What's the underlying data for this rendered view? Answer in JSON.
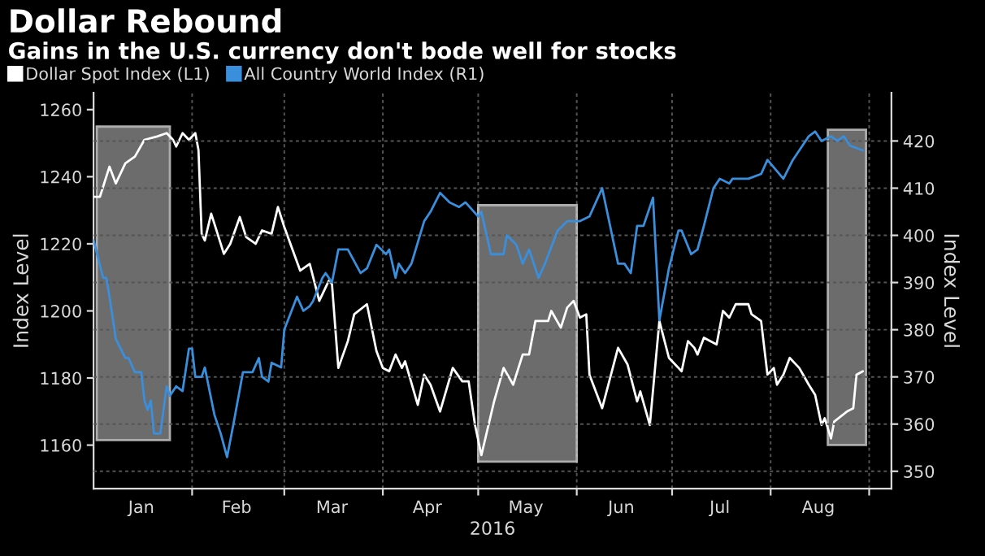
{
  "chart_data": {
    "type": "line",
    "title": "Dollar Rebound",
    "subtitle": "Gains in the U.S. currency don't bode well for stocks",
    "xlabel": "2016",
    "ylabel": "Index Level",
    "y2label": "Index Level",
    "series": [
      {
        "name": "Dollar Spot Index (L1)",
        "color": "#ffffff",
        "x": [
          "2016-01-01",
          "2016-01-03",
          "2016-01-06",
          "2016-01-08",
          "2016-01-11",
          "2016-01-14",
          "2016-01-17",
          "2016-01-21",
          "2016-01-24",
          "2016-01-26",
          "2016-01-27",
          "2016-01-29",
          "2016-01-31",
          "2016-02-02",
          "2016-02-03",
          "2016-02-04",
          "2016-02-05",
          "2016-02-07",
          "2016-02-08",
          "2016-02-11",
          "2016-02-13",
          "2016-02-16",
          "2016-02-18",
          "2016-02-21",
          "2016-02-23",
          "2016-02-26",
          "2016-02-28",
          "2016-03-01",
          "2016-03-06",
          "2016-03-09",
          "2016-03-12",
          "2016-03-15",
          "2016-03-16",
          "2016-03-18",
          "2016-03-21",
          "2016-03-23",
          "2016-03-27",
          "2016-03-30",
          "2016-04-01",
          "2016-04-03",
          "2016-04-05",
          "2016-04-07",
          "2016-04-08",
          "2016-04-12",
          "2016-04-14",
          "2016-04-16",
          "2016-04-19",
          "2016-04-23",
          "2016-04-26",
          "2016-04-28",
          "2016-04-30",
          "2016-05-02",
          "2016-05-06",
          "2016-05-09",
          "2016-05-12",
          "2016-05-15",
          "2016-05-17",
          "2016-05-19",
          "2016-05-23",
          "2016-05-24",
          "2016-05-27",
          "2016-05-29",
          "2016-05-31",
          "2016-06-02",
          "2016-06-04",
          "2016-06-05",
          "2016-06-09",
          "2016-06-14",
          "2016-06-17",
          "2016-06-20",
          "2016-06-21",
          "2016-06-24",
          "2016-06-27",
          "2016-06-30",
          "2016-07-04",
          "2016-07-06",
          "2016-07-08",
          "2016-07-09",
          "2016-07-11",
          "2016-07-15",
          "2016-07-17",
          "2016-07-19",
          "2016-07-21",
          "2016-07-25",
          "2016-07-26",
          "2016-07-29",
          "2016-07-31",
          "2016-08-02",
          "2016-08-03",
          "2016-08-05",
          "2016-08-07",
          "2016-08-10",
          "2016-08-13",
          "2016-08-15",
          "2016-08-17",
          "2016-08-18",
          "2016-08-20",
          "2016-08-21",
          "2016-08-25",
          "2016-08-27",
          "2016-08-28",
          "2016-08-30"
        ],
        "values": [
          1234,
          1234,
          1243,
          1238,
          1244,
          1246,
          1251,
          1252,
          1253,
          1251,
          1249,
          1253,
          1251,
          1253,
          1248,
          1223,
          1221,
          1229,
          1226,
          1217,
          1220,
          1228,
          1222,
          1220,
          1224,
          1223,
          1231,
          1225,
          1212,
          1214,
          1203,
          1209,
          1208,
          1183,
          1191,
          1199,
          1202,
          1188,
          1183,
          1182,
          1187,
          1183,
          1185,
          1172,
          1181,
          1178,
          1170,
          1183,
          1179,
          1179,
          1166,
          1157,
          1173,
          1183,
          1178,
          1187,
          1187,
          1197,
          1197,
          1200,
          1195,
          1201,
          1203,
          1198,
          1199,
          1181,
          1171,
          1189,
          1184,
          1173,
          1176,
          1166,
          1197,
          1186,
          1182,
          1191,
          1189,
          1187,
          1192,
          1190,
          1200,
          1198,
          1202,
          1202,
          1199,
          1197,
          1181,
          1183,
          1178,
          1181,
          1186,
          1183,
          1178,
          1175,
          1166,
          1168,
          1162,
          1167,
          1170,
          1171,
          1181,
          1182
        ]
      },
      {
        "name": "All Country World Index (R1)",
        "color": "#3a8fdd",
        "axis": "y2",
        "x": [
          "2016-01-01",
          "2016-01-04",
          "2016-01-05",
          "2016-01-06",
          "2016-01-08",
          "2016-01-11",
          "2016-01-12",
          "2016-01-14",
          "2016-01-16",
          "2016-01-17",
          "2016-01-18",
          "2016-01-19",
          "2016-01-20",
          "2016-01-22",
          "2016-01-24",
          "2016-01-25",
          "2016-01-27",
          "2016-01-29",
          "2016-01-31",
          "2016-02-01",
          "2016-02-02",
          "2016-02-04",
          "2016-02-05",
          "2016-02-08",
          "2016-02-10",
          "2016-02-12",
          "2016-02-14",
          "2016-02-17",
          "2016-02-20",
          "2016-02-22",
          "2016-02-23",
          "2016-02-25",
          "2016-02-26",
          "2016-02-29",
          "2016-03-01",
          "2016-03-05",
          "2016-03-07",
          "2016-03-09",
          "2016-03-10",
          "2016-03-13",
          "2016-03-14",
          "2016-03-16",
          "2016-03-18",
          "2016-03-21",
          "2016-03-25",
          "2016-03-27",
          "2016-03-30",
          "2016-04-02",
          "2016-04-03",
          "2016-04-05",
          "2016-04-06",
          "2016-04-08",
          "2016-04-10",
          "2016-04-14",
          "2016-04-16",
          "2016-04-19",
          "2016-04-22",
          "2016-04-25",
          "2016-04-27",
          "2016-05-01",
          "2016-05-02",
          "2016-05-05",
          "2016-05-09",
          "2016-05-10",
          "2016-05-13",
          "2016-05-15",
          "2016-05-17",
          "2016-05-20",
          "2016-05-22",
          "2016-05-26",
          "2016-05-29",
          "2016-06-02",
          "2016-06-05",
          "2016-06-09",
          "2016-06-14",
          "2016-06-16",
          "2016-06-18",
          "2016-06-20",
          "2016-06-22",
          "2016-06-25",
          "2016-06-26",
          "2016-06-27",
          "2016-06-30",
          "2016-07-03",
          "2016-07-04",
          "2016-07-07",
          "2016-07-09",
          "2016-07-11",
          "2016-07-14",
          "2016-07-16",
          "2016-07-19",
          "2016-07-20",
          "2016-07-25",
          "2016-07-29",
          "2016-07-31",
          "2016-08-05",
          "2016-08-08",
          "2016-08-11",
          "2016-08-13",
          "2016-08-15",
          "2016-08-17",
          "2016-08-20",
          "2016-08-22",
          "2016-08-24",
          "2016-08-26",
          "2016-08-30"
        ],
        "values": [
          399,
          391,
          391,
          387,
          378,
          374,
          374,
          371,
          371,
          365,
          363,
          365,
          358,
          358,
          368,
          366,
          368,
          367,
          376,
          376,
          370,
          370,
          372,
          362,
          358,
          353,
          360,
          371,
          371,
          374,
          370,
          369,
          373,
          372,
          380,
          387,
          384,
          385,
          386,
          391,
          392,
          390,
          397,
          397,
          392,
          393,
          398,
          396,
          397,
          391,
          394,
          392,
          394,
          403,
          405,
          409,
          407,
          406,
          407,
          404,
          405,
          396,
          396,
          400,
          398,
          394,
          397,
          391,
          394,
          401,
          403,
          403,
          404,
          410,
          394,
          394,
          392,
          402,
          402,
          408,
          395,
          382,
          393,
          401,
          401,
          396,
          397,
          402,
          410,
          412,
          411,
          412,
          412,
          413,
          416,
          412,
          416,
          419,
          421,
          422,
          420,
          421,
          420,
          421,
          419,
          418
        ]
      }
    ],
    "xlim": [
      "2016-01-01",
      "2016-09-08"
    ],
    "xticks": [
      {
        "value": "2016-01-16",
        "label": "Jan"
      },
      {
        "value": "2016-02-15",
        "label": "Feb"
      },
      {
        "value": "2016-03-16",
        "label": "Mar"
      },
      {
        "value": "2016-04-15",
        "label": "Apr"
      },
      {
        "value": "2016-05-16",
        "label": "May"
      },
      {
        "value": "2016-06-15",
        "label": "Jun"
      },
      {
        "value": "2016-07-16",
        "label": "Jul"
      },
      {
        "value": "2016-08-16",
        "label": "Aug"
      },
      {
        "value": "2016-02-01",
        "label": null
      },
      {
        "value": "2016-03-01",
        "label": null
      },
      {
        "value": "2016-04-01",
        "label": null
      },
      {
        "value": "2016-05-01",
        "label": null
      },
      {
        "value": "2016-06-01",
        "label": null
      },
      {
        "value": "2016-07-01",
        "label": null
      },
      {
        "value": "2016-08-01",
        "label": null
      },
      {
        "value": "2016-09-01",
        "label": null
      }
    ],
    "ylim": [
      1147,
      1265
    ],
    "yticks": [
      1160,
      1180,
      1200,
      1220,
      1240,
      1260
    ],
    "y2lim": [
      346.3,
      430.2
    ],
    "y2ticks": [
      350,
      360,
      370,
      380,
      390,
      400,
      410,
      420
    ],
    "bands": [
      {
        "axis": "x",
        "from": "2016-01-02",
        "to": "2016-01-25",
        "color": "#7f7f7f"
      },
      {
        "axis": "x",
        "from": "2016-05-01",
        "to": "2016-06-01",
        "color": "#7f7f7f"
      },
      {
        "axis": "x",
        "from": "2016-08-19",
        "to": "2016-08-31",
        "color": "#7f7f7f"
      }
    ],
    "grid": true,
    "legend": "top left",
    "marker": "none",
    "line_style": "solid"
  }
}
